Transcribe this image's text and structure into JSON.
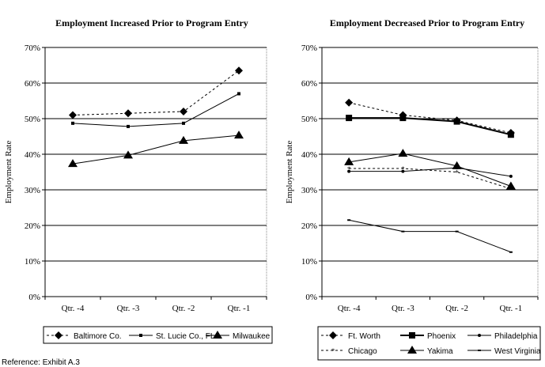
{
  "reference": "Reference: Exhibit A.3",
  "chart_data": [
    {
      "type": "line",
      "title": "Employment Increased Prior to Program Entry",
      "ylabel": "Employment Rate",
      "xlabel": "",
      "categories": [
        "Qtr. -4",
        "Qtr. -3",
        "Qtr. -2",
        "Qtr. -1"
      ],
      "ylim": [
        0,
        70
      ],
      "yticks": [
        "0%",
        "10%",
        "20%",
        "30%",
        "40%",
        "50%",
        "60%",
        "70%"
      ],
      "grid": true,
      "legend": "bottom",
      "series": [
        {
          "name": "Baltimore Co.",
          "values": [
            51,
            51.5,
            52,
            63.5
          ],
          "marker": "diamond",
          "dash": true
        },
        {
          "name": "St. Lucie Co., FL",
          "values": [
            48.7,
            47.8,
            48.7,
            57
          ],
          "marker": "small-square",
          "dash": false
        },
        {
          "name": "Milwaukee",
          "values": [
            37.3,
            39.7,
            43.8,
            45.3
          ],
          "marker": "triangle",
          "dash": false
        }
      ]
    },
    {
      "type": "line",
      "title": "Employment Decreased Prior to Program Entry",
      "ylabel": "Employment Rate",
      "xlabel": "",
      "categories": [
        "Qtr. -4",
        "Qtr. -3",
        "Qtr. -2",
        "Qtr. -1"
      ],
      "ylim": [
        0,
        70
      ],
      "yticks": [
        "0%",
        "10%",
        "20%",
        "30%",
        "40%",
        "50%",
        "60%",
        "70%"
      ],
      "grid": true,
      "legend": "bottom",
      "series": [
        {
          "name": "Ft. Worth",
          "values": [
            54.5,
            51,
            49.5,
            46
          ],
          "marker": "diamond",
          "dash": true
        },
        {
          "name": "Phoenix",
          "values": [
            50.2,
            50.2,
            49.2,
            45.5
          ],
          "marker": "square",
          "dash": false
        },
        {
          "name": "Philadelphia",
          "values": [
            35.2,
            35.2,
            36.2,
            33.8
          ],
          "marker": "dot",
          "dash": false
        },
        {
          "name": "Chicago",
          "values": [
            36,
            36,
            35,
            30.3
          ],
          "marker": "star",
          "dash": true
        },
        {
          "name": "Yakima",
          "values": [
            37.8,
            40.2,
            36.7,
            31
          ],
          "marker": "triangle",
          "dash": false
        },
        {
          "name": "West Virginia",
          "values": [
            21.5,
            18.3,
            18.3,
            12.5
          ],
          "marker": "dash",
          "dash": false
        }
      ]
    }
  ]
}
